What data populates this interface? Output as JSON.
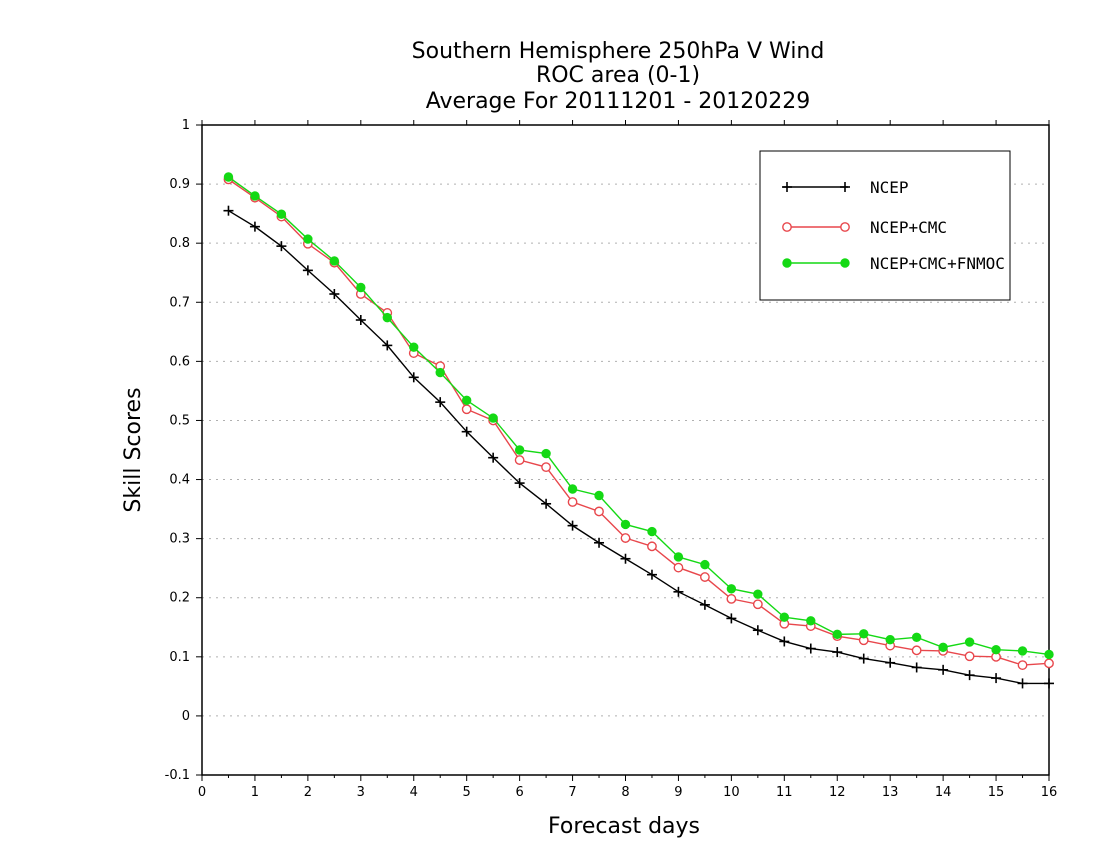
{
  "chart_data": {
    "type": "line",
    "title": [
      "Southern Hemisphere 250hPa V Wind",
      "ROC area (0-1)",
      "Average For 20111201 - 20120229"
    ],
    "xlabel": "Forecast days",
    "ylabel": "Skill Scores",
    "xlim": [
      0,
      16
    ],
    "ylim": [
      -0.1,
      1
    ],
    "xticks": [
      "0",
      "1",
      "2",
      "3",
      "4",
      "5",
      "6",
      "7",
      "8",
      "9",
      "10",
      "11",
      "12",
      "13",
      "14",
      "15",
      "16"
    ],
    "yticks": [
      "-0.1",
      "0",
      "0.1",
      "0.2",
      "0.3",
      "0.4",
      "0.5",
      "0.6",
      "0.7",
      "0.8",
      "0.9",
      "1"
    ],
    "grid": "horizontal dotted",
    "legend_position": "top-right",
    "x": [
      0.5,
      1,
      1.5,
      2,
      2.5,
      3,
      3.5,
      4,
      4.5,
      5,
      5.5,
      6,
      6.5,
      7,
      7.5,
      8,
      8.5,
      9,
      9.5,
      10,
      10.5,
      11,
      11.5,
      12,
      12.5,
      13,
      13.5,
      14,
      14.5,
      15,
      15.5,
      16
    ],
    "series": [
      {
        "name": "NCEP",
        "color": "#000000",
        "marker": "plus",
        "values": [
          0.855,
          0.828,
          0.795,
          0.754,
          0.714,
          0.67,
          0.627,
          0.573,
          0.531,
          0.481,
          0.437,
          0.394,
          0.359,
          0.322,
          0.293,
          0.266,
          0.239,
          0.21,
          0.188,
          0.165,
          0.145,
          0.126,
          0.114,
          0.108,
          0.097,
          0.09,
          0.082,
          0.078,
          0.069,
          0.064,
          0.055,
          0.055
        ]
      },
      {
        "name": "NCEP+CMC",
        "color": "#e8474c",
        "marker": "open-circle",
        "values": [
          0.908,
          0.877,
          0.845,
          0.799,
          0.767,
          0.714,
          0.682,
          0.614,
          0.592,
          0.519,
          0.5,
          0.433,
          0.421,
          0.362,
          0.346,
          0.301,
          0.287,
          0.251,
          0.235,
          0.198,
          0.189,
          0.156,
          0.152,
          0.135,
          0.128,
          0.119,
          0.111,
          0.11,
          0.101,
          0.1,
          0.086,
          0.089
        ]
      },
      {
        "name": "NCEP+CMC+FNMOC",
        "color": "#14d914",
        "marker": "filled-circle",
        "values": [
          0.912,
          0.88,
          0.849,
          0.807,
          0.77,
          0.725,
          0.674,
          0.624,
          0.581,
          0.534,
          0.504,
          0.45,
          0.444,
          0.384,
          0.373,
          0.324,
          0.312,
          0.269,
          0.256,
          0.215,
          0.206,
          0.167,
          0.161,
          0.138,
          0.139,
          0.129,
          0.133,
          0.116,
          0.125,
          0.112,
          0.11,
          0.104
        ]
      }
    ]
  }
}
